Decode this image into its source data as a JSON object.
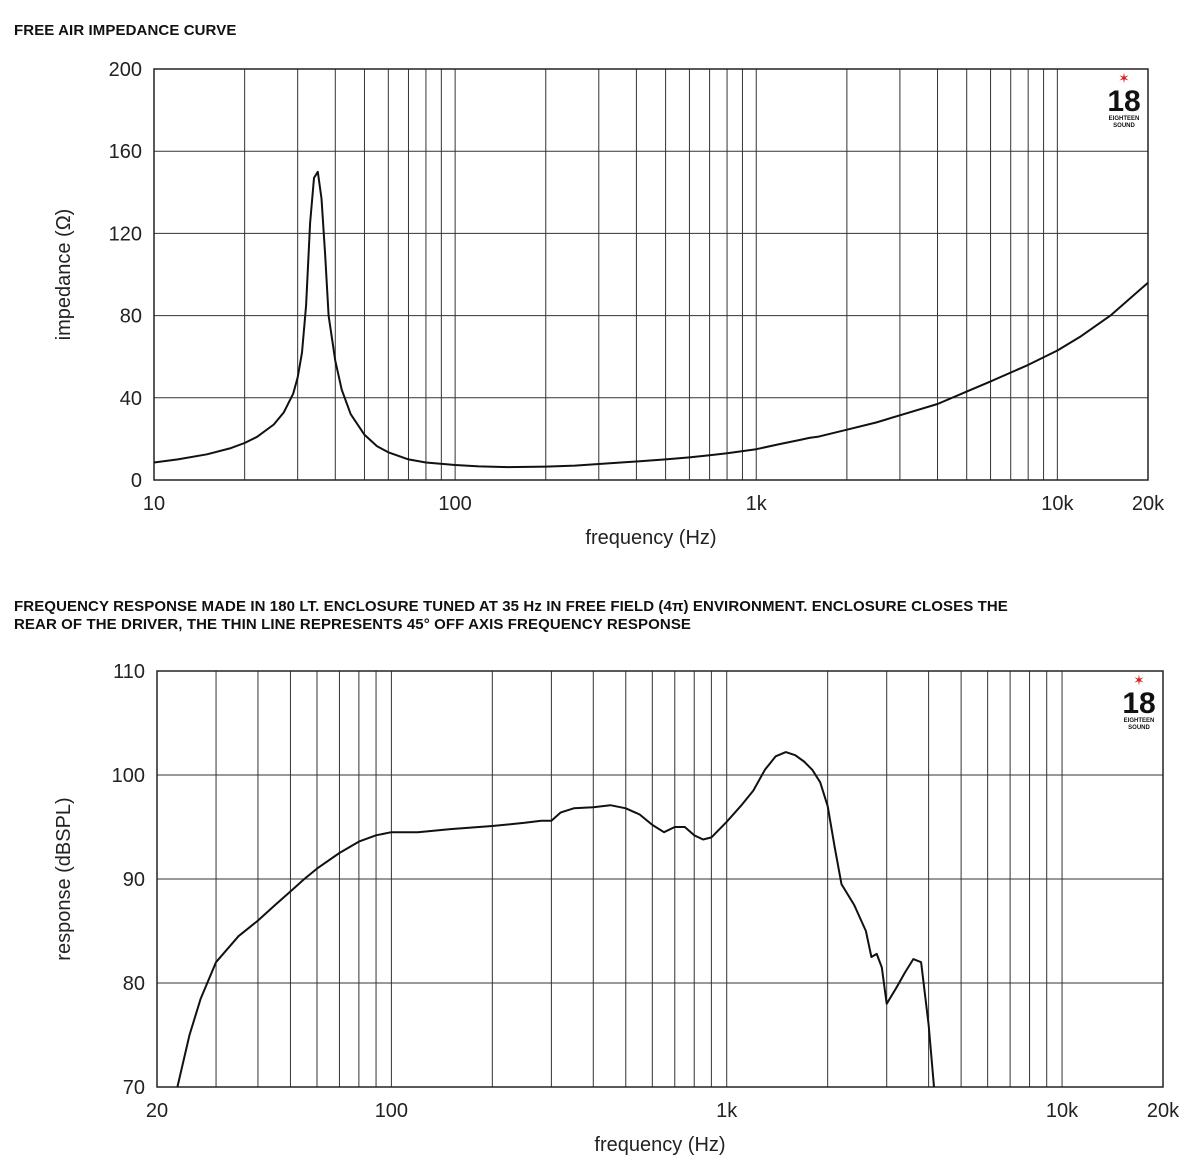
{
  "chart_data": [
    {
      "type": "line",
      "title": "FREE AIR IMPEDANCE CURVE",
      "xlabel": "frequency (Hz)",
      "ylabel": "impedance (Ω)",
      "x_scale": "log",
      "xlim": [
        10,
        20000
      ],
      "ylim": [
        0,
        200
      ],
      "x_ticks": [
        {
          "value": 10,
          "label": "10"
        },
        {
          "value": 100,
          "label": "100"
        },
        {
          "value": 1000,
          "label": "1k"
        },
        {
          "value": 10000,
          "label": "10k"
        },
        {
          "value": 20000,
          "label": "20k"
        }
      ],
      "y_ticks": [
        {
          "value": 0,
          "label": "0"
        },
        {
          "value": 40,
          "label": "40"
        },
        {
          "value": 80,
          "label": "80"
        },
        {
          "value": 120,
          "label": "120"
        },
        {
          "value": 160,
          "label": "160"
        },
        {
          "value": 200,
          "label": "200"
        }
      ],
      "grid": true,
      "logo": {
        "number": "18",
        "text1": "EIGHTEEN",
        "text2": "SOUND"
      },
      "series": [
        {
          "x": [
            10,
            12,
            15,
            18,
            20,
            22,
            25,
            27,
            29,
            30,
            31,
            32,
            33,
            34,
            35,
            36,
            37,
            38,
            40,
            42,
            45,
            50,
            55,
            60,
            70,
            80,
            100,
            120,
            150,
            200,
            250,
            300,
            400,
            500,
            600,
            700,
            800,
            1000,
            1200,
            1400,
            1500,
            1600,
            2000,
            2500,
            3000,
            4000,
            5000,
            6000,
            8000,
            10000,
            12000,
            15000,
            20000
          ],
          "y": [
            8.5,
            10,
            12.5,
            15.5,
            18,
            21,
            27,
            33,
            42,
            50,
            62,
            85,
            125,
            147,
            150,
            137,
            110,
            80,
            58,
            44,
            32,
            22,
            16.5,
            13.5,
            10,
            8.5,
            7.3,
            6.6,
            6.3,
            6.5,
            7,
            7.8,
            9,
            10,
            11,
            12,
            13,
            15,
            17.5,
            19.5,
            20.5,
            21,
            24.5,
            28,
            31.5,
            37,
            43,
            48,
            56,
            63,
            70,
            80,
            96
          ]
        }
      ]
    },
    {
      "type": "line",
      "title_lines": [
        "FREQUENCY RESPONSE MADE IN 180 LT. ENCLOSURE TUNED AT 35 Hz IN FREE FIELD (4π) ENVIRONMENT. ENCLOSURE CLOSES THE",
        "REAR OF THE DRIVER, THE THIN LINE REPRESENTS 45° OFF AXIS FREQUENCY RESPONSE"
      ],
      "xlabel": "frequency (Hz)",
      "ylabel": "response (dBSPL)",
      "x_scale": "log",
      "xlim": [
        20,
        20000
      ],
      "ylim": [
        70,
        110
      ],
      "x_ticks": [
        {
          "value": 20,
          "label": "20"
        },
        {
          "value": 100,
          "label": "100"
        },
        {
          "value": 1000,
          "label": "1k"
        },
        {
          "value": 10000,
          "label": "10k"
        },
        {
          "value": 20000,
          "label": "20k"
        }
      ],
      "y_ticks": [
        {
          "value": 70,
          "label": "70"
        },
        {
          "value": 80,
          "label": "80"
        },
        {
          "value": 90,
          "label": "90"
        },
        {
          "value": 100,
          "label": "100"
        },
        {
          "value": 110,
          "label": "110"
        }
      ],
      "grid": true,
      "logo": {
        "number": "18",
        "text1": "EIGHTEEN",
        "text2": "SOUND"
      },
      "series": [
        {
          "x": [
            23,
            25,
            27,
            30,
            35,
            40,
            45,
            50,
            55,
            60,
            70,
            80,
            90,
            100,
            120,
            150,
            200,
            250,
            280,
            300,
            320,
            350,
            400,
            450,
            500,
            550,
            600,
            650,
            700,
            750,
            800,
            850,
            900,
            1000,
            1100,
            1200,
            1300,
            1400,
            1500,
            1600,
            1700,
            1800,
            1900,
            2000,
            2100,
            2200,
            2400,
            2600,
            2700,
            2800,
            2900,
            3000,
            3200,
            3400,
            3600,
            3800,
            4000,
            4150
          ],
          "y": [
            70,
            75,
            78.5,
            82,
            84.5,
            86,
            87.5,
            88.8,
            90,
            91,
            92.5,
            93.6,
            94.2,
            94.5,
            94.5,
            94.8,
            95.1,
            95.4,
            95.6,
            95.6,
            96.4,
            96.8,
            96.9,
            97.1,
            96.8,
            96.2,
            95.2,
            94.5,
            95,
            95,
            94.2,
            93.8,
            94,
            95.5,
            97,
            98.5,
            100.5,
            101.8,
            102.2,
            101.9,
            101.3,
            100.5,
            99.3,
            97,
            93,
            89.5,
            87.5,
            85,
            82.5,
            82.8,
            81.5,
            78,
            79.5,
            81,
            82.3,
            82,
            76,
            70
          ]
        }
      ]
    }
  ]
}
